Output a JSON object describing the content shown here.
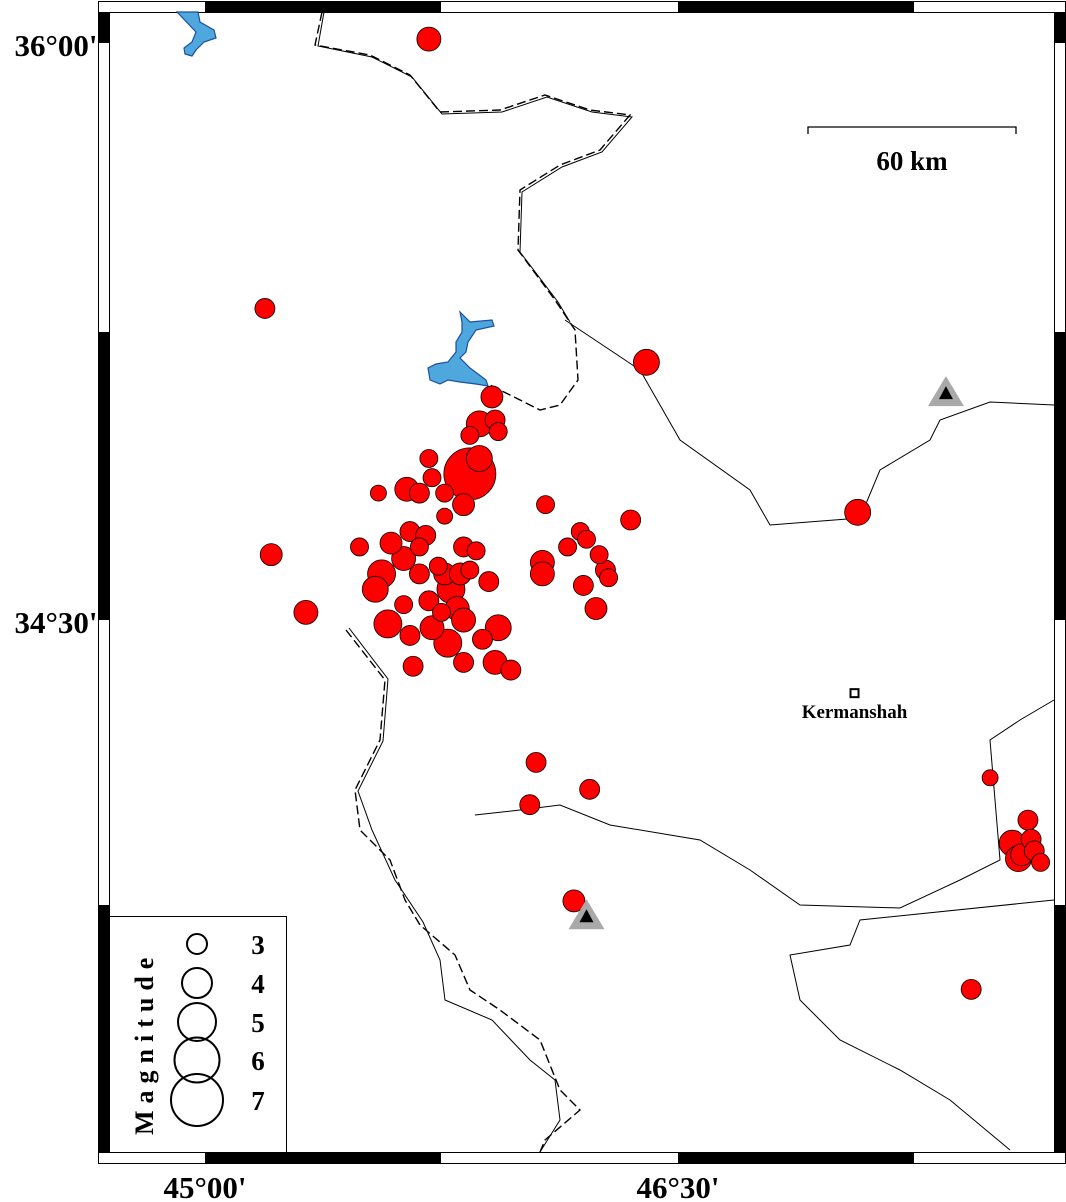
{
  "map": {
    "lon_ticks": [
      {
        "value": 45.0,
        "label": "45°00'"
      },
      {
        "value": 46.5,
        "label": "46°30'"
      }
    ],
    "lat_ticks": [
      {
        "value": 36.0,
        "label": "36°00'"
      },
      {
        "value": 34.5,
        "label": "34°30'"
      }
    ],
    "scale_bar": {
      "label": "60 km"
    },
    "city": {
      "name": "Kermanshah",
      "lon": 47.06,
      "lat": 34.31
    },
    "event_color": "#ff0000",
    "station_color": "#a9a9a9",
    "lake_color": "#4ea8de"
  },
  "legend": {
    "title": "Magnitude",
    "entries": [
      {
        "mag": 3,
        "label": "3"
      },
      {
        "mag": 4,
        "label": "4"
      },
      {
        "mag": 5,
        "label": "5"
      },
      {
        "mag": 6,
        "label": "6"
      },
      {
        "mag": 7,
        "label": "7"
      }
    ]
  },
  "stations": [
    {
      "lon": 47.35,
      "lat": 35.09
    },
    {
      "lon": 46.21,
      "lat": 33.73
    }
  ],
  "events": [
    [
      45.71,
      36.01,
      3.4
    ],
    [
      45.19,
      35.31,
      3.0
    ],
    [
      46.4,
      35.17,
      3.6
    ],
    [
      47.07,
      34.78,
      3.6
    ],
    [
      45.21,
      34.67,
      3.2
    ],
    [
      45.32,
      34.52,
      3.4
    ],
    [
      45.91,
      35.08,
      3.2
    ],
    [
      45.84,
      34.88,
      7.0
    ],
    [
      45.87,
      34.92,
      3.6
    ],
    [
      45.87,
      35.01,
      3.6
    ],
    [
      45.92,
      35.02,
      3.0
    ],
    [
      45.84,
      34.98,
      2.8
    ],
    [
      45.93,
      34.99,
      2.8
    ],
    [
      45.71,
      34.92,
      2.8
    ],
    [
      45.55,
      34.83,
      2.6
    ],
    [
      45.64,
      34.84,
      3.4
    ],
    [
      45.68,
      34.83,
      3.0
    ],
    [
      45.72,
      34.87,
      2.8
    ],
    [
      45.76,
      34.83,
      2.8
    ],
    [
      45.82,
      34.8,
      3.2
    ],
    [
      45.76,
      34.77,
      2.6
    ],
    [
      46.08,
      34.8,
      2.8
    ],
    [
      46.35,
      34.76,
      3.0
    ],
    [
      46.19,
      34.73,
      2.8
    ],
    [
      46.21,
      34.71,
      2.8
    ],
    [
      46.15,
      34.69,
      2.8
    ],
    [
      46.25,
      34.67,
      2.8
    ],
    [
      46.07,
      34.65,
      3.4
    ],
    [
      46.07,
      34.62,
      3.4
    ],
    [
      46.27,
      34.63,
      3.0
    ],
    [
      46.28,
      34.61,
      2.8
    ],
    [
      46.2,
      34.59,
      3.0
    ],
    [
      46.24,
      34.53,
      3.2
    ],
    [
      45.49,
      34.69,
      2.8
    ],
    [
      45.59,
      34.7,
      3.2
    ],
    [
      45.65,
      34.73,
      3.0
    ],
    [
      45.7,
      34.72,
      3.0
    ],
    [
      45.68,
      34.69,
      2.8
    ],
    [
      45.74,
      34.64,
      2.8
    ],
    [
      45.82,
      34.69,
      3.0
    ],
    [
      45.86,
      34.68,
      2.8
    ],
    [
      45.56,
      34.62,
      3.8
    ],
    [
      45.54,
      34.58,
      3.6
    ],
    [
      45.63,
      34.66,
      3.4
    ],
    [
      45.68,
      34.62,
      3.0
    ],
    [
      45.76,
      34.62,
      3.2
    ],
    [
      45.81,
      34.62,
      3.2
    ],
    [
      45.84,
      34.63,
      2.8
    ],
    [
      45.9,
      34.6,
      3.0
    ],
    [
      45.63,
      34.54,
      2.8
    ],
    [
      45.71,
      34.55,
      3.0
    ],
    [
      45.78,
      34.58,
      3.8
    ],
    [
      45.8,
      34.53,
      3.4
    ],
    [
      45.58,
      34.49,
      3.8
    ],
    [
      45.65,
      34.46,
      3.0
    ],
    [
      45.72,
      34.48,
      3.4
    ],
    [
      45.77,
      34.44,
      3.8
    ],
    [
      45.82,
      34.5,
      3.4
    ],
    [
      45.93,
      34.48,
      3.6
    ],
    [
      45.88,
      34.45,
      3.0
    ],
    [
      45.82,
      34.39,
      3.0
    ],
    [
      45.92,
      34.39,
      3.4
    ],
    [
      45.97,
      34.37,
      3.0
    ],
    [
      45.66,
      34.38,
      3.0
    ],
    [
      45.75,
      34.52,
      2.8
    ],
    [
      46.05,
      34.13,
      3.0
    ],
    [
      46.03,
      34.02,
      3.0
    ],
    [
      46.22,
      34.06,
      3.0
    ],
    [
      46.17,
      33.77,
      3.2
    ],
    [
      47.49,
      34.09,
      2.6
    ],
    [
      47.61,
      33.98,
      3.0
    ],
    [
      47.56,
      33.92,
      3.6
    ],
    [
      47.58,
      33.88,
      3.6
    ],
    [
      47.62,
      33.93,
      3.0
    ],
    [
      47.63,
      33.9,
      3.0
    ],
    [
      47.65,
      33.87,
      2.8
    ],
    [
      47.59,
      33.89,
      3.2
    ],
    [
      47.43,
      33.54,
      3.0
    ]
  ]
}
